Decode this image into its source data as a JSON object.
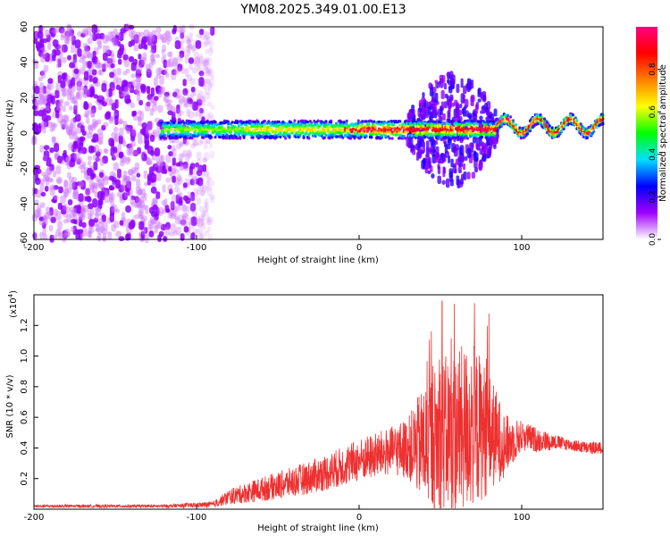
{
  "figure_title": "YM08.2025.349.01.00.E13",
  "chart_data": [
    {
      "type": "heatmap",
      "name": "spectrogram",
      "xlabel": "Height of straight line (km)",
      "ylabel": "Frequency (Hz)",
      "xlim": [
        -200,
        150
      ],
      "ylim": [
        -60,
        60
      ],
      "xticks": [
        -200,
        -100,
        0,
        100
      ],
      "yticks": [
        -60,
        -40,
        -20,
        0,
        20,
        40,
        60
      ],
      "colorbar": {
        "label": "Normalized spectral amplitude",
        "range": [
          0,
          1
        ],
        "ticks": [
          0.0,
          0.2,
          0.4,
          0.6,
          0.8
        ],
        "tick_labels": [
          "0.0",
          "0.2",
          "0.4",
          "0.6",
          "0.8"
        ],
        "colors": [
          "#ffffff",
          "#a000ff",
          "#0000ff",
          "#00e0ff",
          "#00ff00",
          "#ffff00",
          "#ff8000",
          "#ff0000",
          "#ff0080"
        ]
      },
      "features": {
        "noise_region_x": [
          -200,
          -90
        ],
        "signal_band_x": [
          -122,
          150
        ],
        "signal_center_hz": 2,
        "dispersed_region_x": [
          30,
          85
        ]
      }
    },
    {
      "type": "line",
      "name": "snr",
      "xlabel": "Height of straight line (km)",
      "ylabel": "SNR (10 * v/v)",
      "y_multiplier_label": "(x10",
      "y_multiplier_exp": "4",
      "y_multiplier_close": ")",
      "xlim": [
        -200,
        150
      ],
      "ylim": [
        0,
        1.4
      ],
      "xticks": [
        -200,
        -100,
        0,
        100
      ],
      "yticks": [
        0.2,
        0.4,
        0.6,
        0.8,
        1.0,
        1.2
      ],
      "ytick_labels": [
        "0.2",
        "0.4",
        "0.6",
        "0.8",
        "1.0",
        "1.2"
      ],
      "line_color": "#ee3030",
      "envelope": {
        "x": [
          -200,
          -120,
          -90,
          -80,
          -60,
          -40,
          -20,
          0,
          20,
          30,
          40,
          50,
          60,
          70,
          80,
          90,
          100,
          110,
          120,
          130,
          140,
          150
        ],
        "mean": [
          0.02,
          0.02,
          0.03,
          0.08,
          0.13,
          0.18,
          0.24,
          0.32,
          0.38,
          0.4,
          0.42,
          0.48,
          0.5,
          0.55,
          0.5,
          0.42,
          0.48,
          0.45,
          0.44,
          0.42,
          0.4,
          0.4
        ],
        "spread": [
          0.01,
          0.01,
          0.02,
          0.05,
          0.08,
          0.1,
          0.12,
          0.14,
          0.16,
          0.2,
          0.4,
          0.5,
          0.55,
          0.55,
          0.4,
          0.2,
          0.1,
          0.08,
          0.05,
          0.04,
          0.04,
          0.04
        ]
      },
      "peak": {
        "x": 51,
        "y": 1.36
      }
    }
  ]
}
